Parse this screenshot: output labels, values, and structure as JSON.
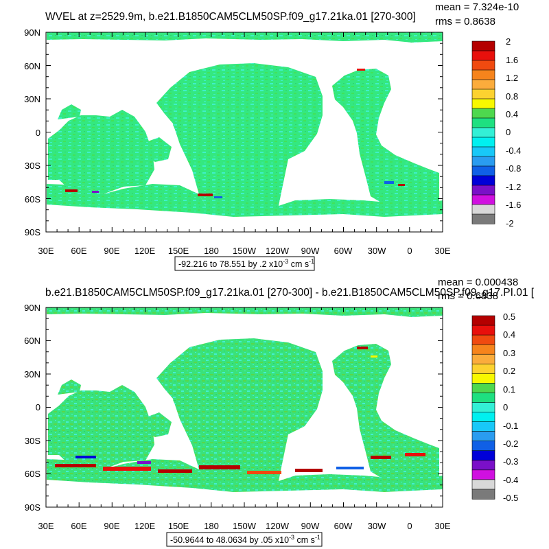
{
  "panels": [
    {
      "title": "WVEL at z=2529.9m, b.e21.B1850CAM5CLM50SP.f09_g17.21ka.01 [270-300]",
      "stats": [
        "mean = 7.324e-10",
        "rms = 0.8638"
      ],
      "range_label_main": "-92.216 to 78.551 by .2 x10",
      "range_label_exp": "-3",
      "range_label_tail": " cm s",
      "range_label_tail_exp": "-1",
      "lat_labels": [
        "90N",
        "60N",
        "30N",
        "0",
        "30S",
        "60S",
        "90S"
      ],
      "lon_labels": [
        "30E",
        "60E",
        "90E",
        "120E",
        "150E",
        "180",
        "150W",
        "120W",
        "90W",
        "60W",
        "30W",
        "0",
        "30E"
      ],
      "colorbar_labels": [
        "2",
        "1.6",
        "1.2",
        "0.8",
        "0.4",
        "0",
        "-0.4",
        "-0.8",
        "-1.2",
        "-1.6",
        "-2"
      ]
    },
    {
      "title": "b.e21.B1850CAM5CLM50SP.f09_g17.21ka.01 [270-300] - b.e21.B1850CAM5CLM50SP.f09_g17.PI.01 [",
      "stats": [
        "mean = 0.000438",
        "rms = 0.6838"
      ],
      "range_label_main": "-50.9644 to 48.0634 by .05 x10",
      "range_label_exp": "-3",
      "range_label_tail": " cm s",
      "range_label_tail_exp": "-1",
      "lat_labels": [
        "90N",
        "60N",
        "30N",
        "0",
        "30S",
        "60S",
        "90S"
      ],
      "lon_labels": [
        "30E",
        "60E",
        "90E",
        "120E",
        "150E",
        "180",
        "150W",
        "120W",
        "90W",
        "60W",
        "30W",
        "0",
        "30E"
      ],
      "colorbar_labels": [
        "0.5",
        "0.4",
        "0.3",
        "0.2",
        "0.1",
        "0",
        "-0.1",
        "-0.2",
        "-0.3",
        "-0.4",
        "-0.5"
      ]
    }
  ],
  "colorbar_colors": [
    "#b40000",
    "#e8100c",
    "#f04a10",
    "#f6841c",
    "#fbac3c",
    "#fdd230",
    "#f8f800",
    "#4ed84e",
    "#1ee080",
    "#33f0d6",
    "#00f0f0",
    "#18c8f8",
    "#2a9cf0",
    "#1060e6",
    "#0000d8",
    "#7a10c8",
    "#d010e0",
    "#d8d8d8",
    "#7a7a7a"
  ],
  "ocean_colors": {
    "base": "#34e880",
    "speckle_light": "#3ff0c8",
    "speckle_dark": "#42e25a",
    "land": "#ffffff"
  }
}
